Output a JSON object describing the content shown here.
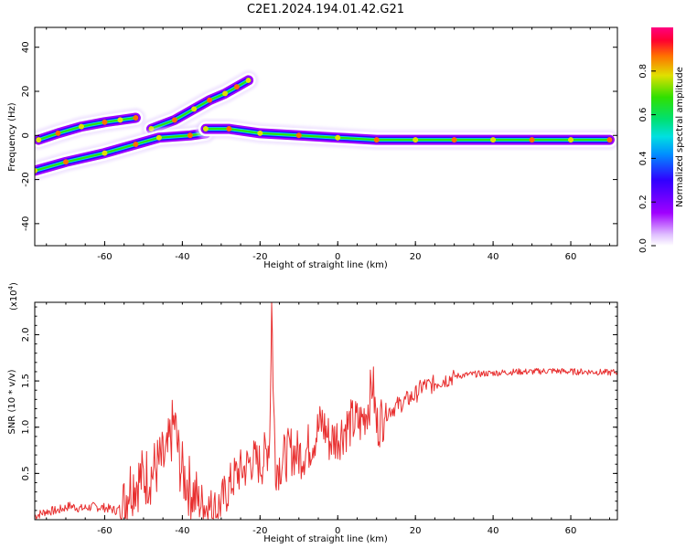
{
  "title": "C2E1.2024.194.01.42.G21",
  "chart_data": [
    {
      "type": "heatmap",
      "xlabel": "Height of straight line (km)",
      "ylabel": "Frequency (Hz)",
      "xlim": [
        -78,
        72
      ],
      "ylim": [
        -50,
        49
      ],
      "xticks": [
        -60,
        -40,
        -20,
        0,
        20,
        40,
        60
      ],
      "yticks": [
        -40,
        -20,
        0,
        20,
        40
      ],
      "grid": false,
      "traces": [
        {
          "x": [
            -77,
            -72,
            -66,
            -60,
            -56,
            -52
          ],
          "y": [
            -2,
            1,
            4,
            6,
            7,
            8
          ]
        },
        {
          "x": [
            -48,
            -42,
            -37,
            -33,
            -29,
            -26,
            -23
          ],
          "y": [
            3,
            7,
            12,
            16,
            19,
            22,
            25
          ]
        },
        {
          "x": [
            -78,
            -70,
            -60,
            -52,
            -46,
            -38,
            -34
          ],
          "y": [
            -16,
            -12,
            -8,
            -4,
            -1,
            0,
            1
          ]
        },
        {
          "x": [
            -34,
            -28,
            -20,
            -10,
            0,
            10,
            20,
            30,
            40,
            50,
            60,
            70
          ],
          "y": [
            3,
            3,
            1,
            0,
            -1,
            -2,
            -2,
            -2,
            -2,
            -2,
            -2,
            -2
          ]
        }
      ],
      "colorbar": {
        "label": "Normalized spectral amplitude",
        "ticks": [
          "0.0",
          "0.2",
          "0.4",
          "0.6",
          "0.8"
        ],
        "tick_values": [
          0.0,
          0.2,
          0.4,
          0.6,
          0.8
        ],
        "range": [
          0,
          1
        ],
        "colors": [
          "#ffffff",
          "#a000ff",
          "#3000ff",
          "#0090ff",
          "#00e0e0",
          "#00e070",
          "#30e000",
          "#e0e000",
          "#ff7000",
          "#ff0030",
          "#ff0080"
        ]
      }
    },
    {
      "type": "line",
      "xlabel": "Height of straight line (km)",
      "ylabel": "SNR (10 * v/v)",
      "multiplier_label": "(x10",
      "multiplier_exp": "4",
      "multiplier_close": ")",
      "xlim": [
        -78,
        72
      ],
      "ylim": [
        0,
        23500
      ],
      "xticks": [
        -60,
        -40,
        -20,
        0,
        20,
        40,
        60
      ],
      "yticks": [
        5000,
        10000,
        15000,
        20000
      ],
      "ytick_labels": [
        "0.5",
        "1.0",
        "1.5",
        "2.0"
      ],
      "grid": false,
      "color": "#e83030",
      "series": [
        {
          "x": [
            -78,
            -75,
            -72,
            -69,
            -66,
            -63,
            -60,
            -57,
            -55,
            -54,
            -52,
            -50,
            -48,
            -46,
            -44,
            -43,
            -42,
            -41,
            -40,
            -38,
            -36,
            -34,
            -32,
            -30,
            -28,
            -26,
            -24,
            -22,
            -20,
            -18.5,
            -17.5,
            -17,
            -16.5,
            -16,
            -15,
            -14,
            -12,
            -10,
            -8,
            -6,
            -4,
            -2,
            0,
            2,
            4,
            6,
            8,
            9,
            10,
            12,
            14,
            16,
            18,
            20,
            22,
            24,
            26,
            28,
            30,
            34,
            38,
            42,
            46,
            50,
            55,
            60,
            65,
            70,
            72
          ],
          "y": [
            400,
            900,
            1000,
            1500,
            1200,
            1400,
            1300,
            1000,
            1500,
            3500,
            4200,
            4500,
            5000,
            6000,
            6500,
            9000,
            10500,
            7000,
            5000,
            3500,
            2000,
            1500,
            1000,
            1800,
            3500,
            5000,
            5500,
            6500,
            6000,
            7000,
            9000,
            23500,
            12000,
            6000,
            6000,
            6500,
            7500,
            7000,
            7500,
            9000,
            10500,
            8500,
            9000,
            10000,
            10500,
            10500,
            12500,
            15000,
            10000,
            11500,
            12000,
            12500,
            13000,
            13500,
            14500,
            14500,
            15000,
            15200,
            15500,
            15700,
            15800,
            15900,
            16000,
            16000,
            16100,
            16000,
            16000,
            15900,
            16000
          ]
        }
      ]
    }
  ]
}
